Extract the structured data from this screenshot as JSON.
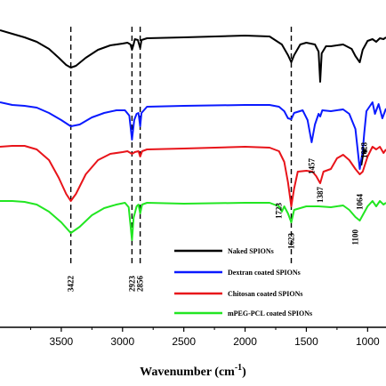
{
  "chart_data": {
    "type": "line",
    "title": "",
    "ylabel": "",
    "xlabel": "Wavenumber (cm",
    "xlabel_sup": "-1",
    "xlabel_close": ")",
    "xlim": [
      4000,
      850
    ],
    "x_ticks": [
      {
        "v": 3500,
        "label": "3500"
      },
      {
        "v": 3000,
        "label": "3000"
      },
      {
        "v": 2500,
        "label": "2500"
      },
      {
        "v": 2000,
        "label": "2000"
      },
      {
        "v": 1500,
        "label": "1500"
      },
      {
        "v": 1000,
        "label": "1000"
      }
    ],
    "reference_lines": [
      {
        "x": 3422,
        "label": "3422"
      },
      {
        "x": 2923,
        "label": "2923"
      },
      {
        "x": 2856,
        "label": "2856"
      },
      {
        "x": 1623,
        "label": "1623"
      }
    ],
    "peak_labels": [
      {
        "x": 1723,
        "label": "1723"
      },
      {
        "x": 1457,
        "label": "1457"
      },
      {
        "x": 1387,
        "label": "1387"
      },
      {
        "x": 1100,
        "label": "1100"
      },
      {
        "x": 1064,
        "label": "1064"
      },
      {
        "x": 1028,
        "label": "1028"
      }
    ],
    "legend_position": "bottom-right",
    "series": [
      {
        "name": "Naked SPIONs",
        "color": "#000000",
        "points": [
          [
            4000,
            34
          ],
          [
            3900,
            38
          ],
          [
            3800,
            42
          ],
          [
            3700,
            47
          ],
          [
            3600,
            55
          ],
          [
            3520,
            65
          ],
          [
            3460,
            73
          ],
          [
            3422,
            76
          ],
          [
            3380,
            74
          ],
          [
            3300,
            65
          ],
          [
            3200,
            56
          ],
          [
            3100,
            51
          ],
          [
            3000,
            49
          ],
          [
            2960,
            48
          ],
          [
            2935,
            50
          ],
          [
            2923,
            56
          ],
          [
            2910,
            50
          ],
          [
            2900,
            44
          ],
          [
            2875,
            45
          ],
          [
            2856,
            54
          ],
          [
            2845,
            45
          ],
          [
            2800,
            43
          ],
          [
            2500,
            42
          ],
          [
            2000,
            40
          ],
          [
            1800,
            41
          ],
          [
            1700,
            50
          ],
          [
            1650,
            62
          ],
          [
            1623,
            70
          ],
          [
            1600,
            62
          ],
          [
            1550,
            50
          ],
          [
            1500,
            48
          ],
          [
            1430,
            50
          ],
          [
            1400,
            58
          ],
          [
            1387,
            92
          ],
          [
            1375,
            60
          ],
          [
            1340,
            52
          ],
          [
            1300,
            52
          ],
          [
            1200,
            50
          ],
          [
            1130,
            55
          ],
          [
            1100,
            63
          ],
          [
            1064,
            70
          ],
          [
            1040,
            56
          ],
          [
            1000,
            46
          ],
          [
            960,
            44
          ],
          [
            930,
            47
          ],
          [
            900,
            43
          ],
          [
            870,
            44
          ],
          [
            850,
            42
          ]
        ]
      },
      {
        "name": "Dextran coated SPIONs",
        "color": "#0a1aff",
        "points": [
          [
            4000,
            115
          ],
          [
            3900,
            118
          ],
          [
            3800,
            119
          ],
          [
            3700,
            121
          ],
          [
            3600,
            127
          ],
          [
            3500,
            135
          ],
          [
            3422,
            142
          ],
          [
            3350,
            140
          ],
          [
            3250,
            132
          ],
          [
            3150,
            127
          ],
          [
            3050,
            124
          ],
          [
            2980,
            124
          ],
          [
            2945,
            130
          ],
          [
            2923,
            157
          ],
          [
            2905,
            135
          ],
          [
            2885,
            128
          ],
          [
            2870,
            127
          ],
          [
            2856,
            142
          ],
          [
            2845,
            127
          ],
          [
            2800,
            120
          ],
          [
            2500,
            119
          ],
          [
            2000,
            118
          ],
          [
            1800,
            118
          ],
          [
            1723,
            120
          ],
          [
            1680,
            125
          ],
          [
            1650,
            133
          ],
          [
            1623,
            134
          ],
          [
            1600,
            127
          ],
          [
            1530,
            124
          ],
          [
            1490,
            135
          ],
          [
            1457,
            160
          ],
          [
            1430,
            140
          ],
          [
            1400,
            128
          ],
          [
            1387,
            131
          ],
          [
            1370,
            124
          ],
          [
            1300,
            125
          ],
          [
            1200,
            123
          ],
          [
            1150,
            128
          ],
          [
            1100,
            145
          ],
          [
            1064,
            190
          ],
          [
            1040,
            170
          ],
          [
            1028,
            150
          ],
          [
            1010,
            125
          ],
          [
            960,
            115
          ],
          [
            940,
            128
          ],
          [
            910,
            117
          ],
          [
            880,
            133
          ],
          [
            850,
            122
          ]
        ]
      },
      {
        "name": "Chitosan coated SPIONs",
        "color": "#e8141a",
        "points": [
          [
            4000,
            165
          ],
          [
            3900,
            164
          ],
          [
            3800,
            164
          ],
          [
            3700,
            168
          ],
          [
            3600,
            180
          ],
          [
            3520,
            200
          ],
          [
            3460,
            218
          ],
          [
            3422,
            226
          ],
          [
            3380,
            218
          ],
          [
            3300,
            196
          ],
          [
            3200,
            180
          ],
          [
            3100,
            173
          ],
          [
            3000,
            171
          ],
          [
            2960,
            170
          ],
          [
            2923,
            173
          ],
          [
            2900,
            171
          ],
          [
            2870,
            170
          ],
          [
            2856,
            176
          ],
          [
            2840,
            170
          ],
          [
            2800,
            168
          ],
          [
            2500,
            167
          ],
          [
            2000,
            165
          ],
          [
            1800,
            166
          ],
          [
            1723,
            170
          ],
          [
            1680,
            182
          ],
          [
            1650,
            205
          ],
          [
            1623,
            232
          ],
          [
            1600,
            212
          ],
          [
            1570,
            193
          ],
          [
            1500,
            192
          ],
          [
            1450,
            193
          ],
          [
            1420,
            198
          ],
          [
            1387,
            206
          ],
          [
            1360,
            193
          ],
          [
            1300,
            190
          ],
          [
            1250,
            178
          ],
          [
            1200,
            174
          ],
          [
            1150,
            180
          ],
          [
            1100,
            190
          ],
          [
            1064,
            196
          ],
          [
            1040,
            193
          ],
          [
            1000,
            176
          ],
          [
            960,
            165
          ],
          [
            930,
            168
          ],
          [
            900,
            165
          ],
          [
            870,
            172
          ],
          [
            850,
            168
          ]
        ]
      },
      {
        "name": "mPEG-PCL coated SPIONs",
        "color": "#22e622",
        "points": [
          [
            4000,
            226
          ],
          [
            3900,
            226
          ],
          [
            3800,
            227
          ],
          [
            3700,
            230
          ],
          [
            3600,
            238
          ],
          [
            3500,
            250
          ],
          [
            3422,
            262
          ],
          [
            3350,
            255
          ],
          [
            3250,
            242
          ],
          [
            3150,
            234
          ],
          [
            3050,
            230
          ],
          [
            2980,
            228
          ],
          [
            2950,
            233
          ],
          [
            2923,
            270
          ],
          [
            2910,
            245
          ],
          [
            2885,
            232
          ],
          [
            2870,
            230
          ],
          [
            2856,
            240
          ],
          [
            2840,
            230
          ],
          [
            2800,
            228
          ],
          [
            2500,
            229
          ],
          [
            2000,
            228
          ],
          [
            1800,
            228
          ],
          [
            1723,
            232
          ],
          [
            1700,
            238
          ],
          [
            1680,
            232
          ],
          [
            1650,
            240
          ],
          [
            1623,
            250
          ],
          [
            1600,
            236
          ],
          [
            1500,
            232
          ],
          [
            1400,
            232
          ],
          [
            1300,
            233
          ],
          [
            1200,
            231
          ],
          [
            1150,
            236
          ],
          [
            1100,
            244
          ],
          [
            1064,
            248
          ],
          [
            1040,
            242
          ],
          [
            1000,
            232
          ],
          [
            960,
            226
          ],
          [
            930,
            232
          ],
          [
            900,
            226
          ],
          [
            870,
            230
          ],
          [
            850,
            228
          ]
        ]
      }
    ]
  }
}
